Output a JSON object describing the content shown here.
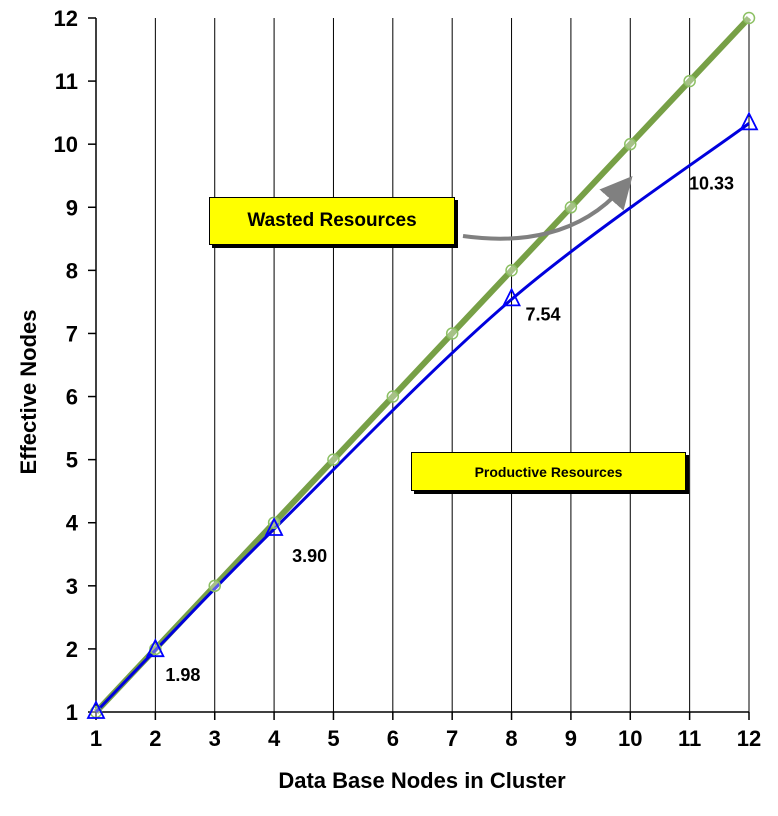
{
  "chart_data": {
    "type": "line",
    "xlabel": "Data Base Nodes in Cluster",
    "ylabel": "Effective Nodes",
    "xlim": [
      1,
      12
    ],
    "ylim": [
      1,
      12
    ],
    "x_ticks": [
      "1",
      "2",
      "3",
      "4",
      "5",
      "6",
      "7",
      "8",
      "9",
      "10",
      "11",
      "12"
    ],
    "y_ticks": [
      "1",
      "2",
      "3",
      "4",
      "5",
      "6",
      "7",
      "8",
      "9",
      "10",
      "11",
      "12"
    ],
    "grid": "vertical",
    "series": [
      {
        "marker": "circle",
        "color": "#77a046",
        "x": [
          1,
          2,
          3,
          4,
          5,
          6,
          7,
          8,
          9,
          10,
          11,
          12
        ],
        "values": [
          1,
          2,
          3,
          4,
          5,
          6,
          7,
          8,
          9,
          10,
          11,
          12
        ]
      },
      {
        "marker": "triangle",
        "color": "#0000dd",
        "x": [
          1,
          2,
          4,
          8,
          12
        ],
        "values": [
          1,
          1.98,
          3.9,
          7.54,
          10.33
        ]
      }
    ],
    "data_labels": [
      "1.98",
      "3.90",
      "7.54",
      "10.33"
    ],
    "annotations": {
      "wasted": "Wasted Resources",
      "productive": "Productive Resources"
    },
    "callout_color": "#ffff00",
    "arrow_color": "#808080"
  }
}
